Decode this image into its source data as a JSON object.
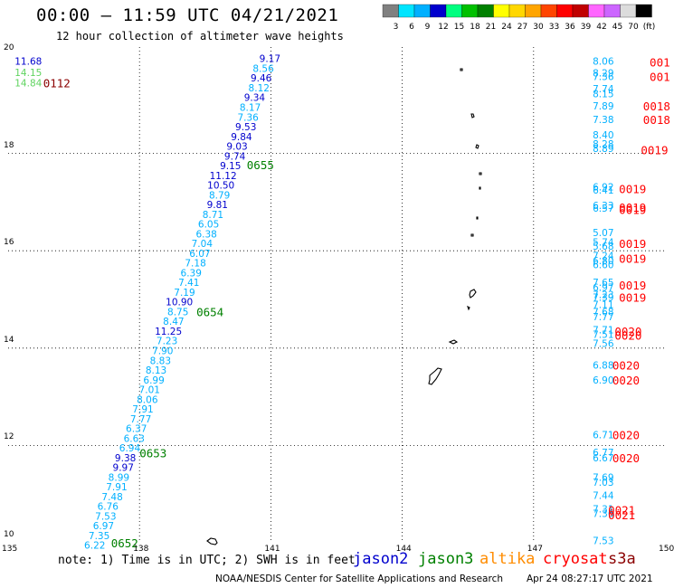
{
  "header": {
    "title": "00:00 — 11:59 UTC 04/21/2021",
    "subtitle": "12 hour collection of altimeter wave heights"
  },
  "colorbar": {
    "labels": [
      "3",
      "6",
      "9",
      "12",
      "15",
      "18",
      "21",
      "24",
      "27",
      "30",
      "33",
      "36",
      "39",
      "42",
      "45",
      "70",
      "(ft)"
    ],
    "colors": [
      "#808080",
      "#00e5ff",
      "#00b0ff",
      "#0000cd",
      "#00ff80",
      "#00c000",
      "#008000",
      "#ffff00",
      "#ffd700",
      "#ffa500",
      "#ff4500",
      "#ff0000",
      "#c00000",
      "#ff66ff",
      "#cc66ff",
      "#dcdcdc",
      "#000000"
    ]
  },
  "axes": {
    "x_ticks": [
      "135",
      "138",
      "141",
      "144",
      "147",
      "150"
    ],
    "y_ticks": [
      "10",
      "12",
      "14",
      "16",
      "18",
      "20"
    ],
    "lon_range": [
      135,
      150
    ],
    "lat_range": [
      10,
      20
    ]
  },
  "tracks": [
    {
      "group": "left",
      "points": [
        {
          "lat": 19.9,
          "lon": 135.15,
          "value": "11.68",
          "color": "#0000cd"
        },
        {
          "lat": 19.67,
          "lon": 135.15,
          "value": "14.15",
          "color": "#5fd35f"
        },
        {
          "lat": 19.45,
          "lon": 135.15,
          "value": "14.84",
          "color": "#5fd35f"
        },
        {
          "lat": 19.95,
          "lon": 141.22,
          "value": "9.17",
          "color": "#0000cd"
        },
        {
          "lat": 19.75,
          "lon": 141.07,
          "value": "8.56",
          "color": "#00b0ff"
        },
        {
          "lat": 19.55,
          "lon": 141.02,
          "value": "9.46",
          "color": "#0000cd"
        },
        {
          "lat": 19.35,
          "lon": 140.97,
          "value": "8.12",
          "color": "#00b0ff"
        },
        {
          "lat": 19.15,
          "lon": 140.87,
          "value": "9.34",
          "color": "#0000cd"
        },
        {
          "lat": 18.95,
          "lon": 140.77,
          "value": "8.17",
          "color": "#00b0ff"
        },
        {
          "lat": 18.75,
          "lon": 140.72,
          "value": "7.36",
          "color": "#00b0ff"
        },
        {
          "lat": 18.55,
          "lon": 140.67,
          "value": "9.53",
          "color": "#0000cd"
        },
        {
          "lat": 18.35,
          "lon": 140.57,
          "value": "9.84",
          "color": "#0000cd"
        },
        {
          "lat": 18.15,
          "lon": 140.47,
          "value": "9.03",
          "color": "#0000cd"
        },
        {
          "lat": 17.95,
          "lon": 140.42,
          "value": "9.74",
          "color": "#0000cd"
        },
        {
          "lat": 17.75,
          "lon": 140.32,
          "value": "9.15",
          "color": "#0000cd"
        },
        {
          "lat": 17.55,
          "lon": 140.22,
          "value": "11.12",
          "color": "#0000cd"
        },
        {
          "lat": 17.35,
          "lon": 140.17,
          "value": "10.50",
          "color": "#0000cd"
        },
        {
          "lat": 17.15,
          "lon": 140.07,
          "value": "8.79",
          "color": "#00b0ff"
        },
        {
          "lat": 16.95,
          "lon": 140.02,
          "value": "9.81",
          "color": "#0000cd"
        },
        {
          "lat": 16.75,
          "lon": 139.92,
          "value": "8.71",
          "color": "#00b0ff"
        },
        {
          "lat": 16.55,
          "lon": 139.82,
          "value": "6.05",
          "color": "#00b0ff"
        },
        {
          "lat": 16.35,
          "lon": 139.77,
          "value": "6.38",
          "color": "#00b0ff"
        },
        {
          "lat": 16.15,
          "lon": 139.67,
          "value": "7.04",
          "color": "#00b0ff"
        },
        {
          "lat": 15.95,
          "lon": 139.62,
          "value": "6.07",
          "color": "#00b0ff"
        },
        {
          "lat": 15.75,
          "lon": 139.52,
          "value": "7.18",
          "color": "#00b0ff"
        },
        {
          "lat": 15.55,
          "lon": 139.42,
          "value": "6.39",
          "color": "#00b0ff"
        },
        {
          "lat": 15.35,
          "lon": 139.37,
          "value": "7.41",
          "color": "#00b0ff"
        },
        {
          "lat": 15.15,
          "lon": 139.27,
          "value": "7.19",
          "color": "#00b0ff"
        },
        {
          "lat": 14.95,
          "lon": 139.22,
          "value": "10.90",
          "color": "#0000cd"
        },
        {
          "lat": 14.75,
          "lon": 139.12,
          "value": "8.75",
          "color": "#00b0ff"
        },
        {
          "lat": 14.55,
          "lon": 139.02,
          "value": "8.47",
          "color": "#00b0ff"
        },
        {
          "lat": 14.35,
          "lon": 138.97,
          "value": "11.25",
          "color": "#0000cd"
        },
        {
          "lat": 14.15,
          "lon": 138.87,
          "value": "7.23",
          "color": "#00b0ff"
        },
        {
          "lat": 13.95,
          "lon": 138.77,
          "value": "7.90",
          "color": "#00b0ff"
        },
        {
          "lat": 13.75,
          "lon": 138.72,
          "value": "8.83",
          "color": "#00b0ff"
        },
        {
          "lat": 13.55,
          "lon": 138.62,
          "value": "8.13",
          "color": "#00b0ff"
        },
        {
          "lat": 13.35,
          "lon": 138.57,
          "value": "6.99",
          "color": "#00b0ff"
        },
        {
          "lat": 13.15,
          "lon": 138.47,
          "value": "7.01",
          "color": "#00b0ff"
        },
        {
          "lat": 12.95,
          "lon": 138.42,
          "value": "8.06",
          "color": "#00b0ff"
        },
        {
          "lat": 12.75,
          "lon": 138.32,
          "value": "7.91",
          "color": "#00b0ff"
        },
        {
          "lat": 12.55,
          "lon": 138.27,
          "value": "7.77",
          "color": "#00b0ff"
        },
        {
          "lat": 12.35,
          "lon": 138.17,
          "value": "6.37",
          "color": "#00b0ff"
        },
        {
          "lat": 12.15,
          "lon": 138.12,
          "value": "6.63",
          "color": "#00b0ff"
        },
        {
          "lat": 11.95,
          "lon": 138.02,
          "value": "6.94",
          "color": "#00b0ff"
        },
        {
          "lat": 11.75,
          "lon": 137.92,
          "value": "9.38",
          "color": "#0000cd"
        },
        {
          "lat": 11.55,
          "lon": 137.87,
          "value": "9.97",
          "color": "#0000cd"
        },
        {
          "lat": 11.35,
          "lon": 137.77,
          "value": "8.99",
          "color": "#00b0ff"
        },
        {
          "lat": 11.15,
          "lon": 137.72,
          "value": "7.91",
          "color": "#00b0ff"
        },
        {
          "lat": 10.95,
          "lon": 137.62,
          "value": "7.48",
          "color": "#00b0ff"
        },
        {
          "lat": 10.75,
          "lon": 137.52,
          "value": "6.76",
          "color": "#00b0ff"
        },
        {
          "lat": 10.55,
          "lon": 137.47,
          "value": "7.53",
          "color": "#00b0ff"
        },
        {
          "lat": 10.35,
          "lon": 137.42,
          "value": "6.97",
          "color": "#00b0ff"
        },
        {
          "lat": 10.15,
          "lon": 137.32,
          "value": "7.35",
          "color": "#00b0ff"
        },
        {
          "lat": 9.95,
          "lon": 137.22,
          "value": "6.22",
          "color": "#00b0ff"
        }
      ]
    },
    {
      "group": "right",
      "points": [
        {
          "lat": 19.9,
          "lon": 148.35,
          "value": "8.06",
          "color": "#00b0ff"
        },
        {
          "lat": 19.66,
          "lon": 148.35,
          "value": "8.29",
          "color": "#00b0ff"
        },
        {
          "lat": 19.58,
          "lon": 148.35,
          "value": "7.36",
          "color": "#00b0ff"
        },
        {
          "lat": 19.33,
          "lon": 148.35,
          "value": "7.74",
          "color": "#00b0ff"
        },
        {
          "lat": 19.23,
          "lon": 148.35,
          "value": "8.15",
          "color": "#00b0ff"
        },
        {
          "lat": 18.98,
          "lon": 148.35,
          "value": "7.89",
          "color": "#00b0ff"
        },
        {
          "lat": 18.7,
          "lon": 148.35,
          "value": "7.38",
          "color": "#00b0ff"
        },
        {
          "lat": 18.38,
          "lon": 148.35,
          "value": "8.40",
          "color": "#00b0ff"
        },
        {
          "lat": 18.2,
          "lon": 148.35,
          "value": "8.28",
          "color": "#00b0ff"
        },
        {
          "lat": 18.1,
          "lon": 148.35,
          "value": "8.89",
          "color": "#00b0ff"
        },
        {
          "lat": 17.31,
          "lon": 148.35,
          "value": "6.92",
          "color": "#00b0ff"
        },
        {
          "lat": 17.25,
          "lon": 148.35,
          "value": "6.41",
          "color": "#00b0ff"
        },
        {
          "lat": 16.93,
          "lon": 148.35,
          "value": "6.33",
          "color": "#00b0ff"
        },
        {
          "lat": 16.88,
          "lon": 148.35,
          "value": "6.57",
          "color": "#00b0ff"
        },
        {
          "lat": 16.38,
          "lon": 148.35,
          "value": "5.07",
          "color": "#00b0ff"
        },
        {
          "lat": 16.18,
          "lon": 148.35,
          "value": "5.74",
          "color": "#00b0ff"
        },
        {
          "lat": 16.1,
          "lon": 148.35,
          "value": "5.68",
          "color": "#00b0ff"
        },
        {
          "lat": 15.9,
          "lon": 148.35,
          "value": "7.24",
          "color": "#00b0ff"
        },
        {
          "lat": 15.8,
          "lon": 148.35,
          "value": "6.80",
          "color": "#00b0ff"
        },
        {
          "lat": 15.72,
          "lon": 148.35,
          "value": "6.60",
          "color": "#00b0ff"
        },
        {
          "lat": 15.35,
          "lon": 148.35,
          "value": "7.65",
          "color": "#00b0ff"
        },
        {
          "lat": 15.25,
          "lon": 148.35,
          "value": "6.97",
          "color": "#00b0ff"
        },
        {
          "lat": 15.1,
          "lon": 148.35,
          "value": "7.23",
          "color": "#00b0ff"
        },
        {
          "lat": 15.05,
          "lon": 148.35,
          "value": "7.39",
          "color": "#00b0ff"
        },
        {
          "lat": 14.9,
          "lon": 148.35,
          "value": "7.11",
          "color": "#00b0ff"
        },
        {
          "lat": 14.75,
          "lon": 148.35,
          "value": "7.68",
          "color": "#00b0ff"
        },
        {
          "lat": 14.65,
          "lon": 148.35,
          "value": "7.77",
          "color": "#00b0ff"
        },
        {
          "lat": 14.38,
          "lon": 148.35,
          "value": "7.71",
          "color": "#00b0ff"
        },
        {
          "lat": 14.28,
          "lon": 148.35,
          "value": "7.51",
          "color": "#00b0ff"
        },
        {
          "lat": 14.1,
          "lon": 148.35,
          "value": "7.56",
          "color": "#00b0ff"
        },
        {
          "lat": 13.65,
          "lon": 148.35,
          "value": "6.88",
          "color": "#00b0ff"
        },
        {
          "lat": 13.35,
          "lon": 148.35,
          "value": "6.90",
          "color": "#00b0ff"
        },
        {
          "lat": 12.22,
          "lon": 148.35,
          "value": "6.71",
          "color": "#00b0ff"
        },
        {
          "lat": 11.86,
          "lon": 148.35,
          "value": "6.77",
          "color": "#00b0ff"
        },
        {
          "lat": 11.75,
          "lon": 148.35,
          "value": "6.67",
          "color": "#00b0ff"
        },
        {
          "lat": 11.35,
          "lon": 148.35,
          "value": "7.69",
          "color": "#00b0ff"
        },
        {
          "lat": 11.25,
          "lon": 148.35,
          "value": "7.03",
          "color": "#00b0ff"
        },
        {
          "lat": 10.98,
          "lon": 148.35,
          "value": "7.44",
          "color": "#00b0ff"
        },
        {
          "lat": 10.7,
          "lon": 148.35,
          "value": "7.31",
          "color": "#00b0ff"
        },
        {
          "lat": 10.6,
          "lon": 148.35,
          "value": "7.36",
          "color": "#00b0ff"
        },
        {
          "lat": 10.05,
          "lon": 148.35,
          "value": "7.53",
          "color": "#00b0ff"
        }
      ]
    }
  ],
  "time_labels": [
    {
      "lat": 19.45,
      "lon": 135.8,
      "text": "0112",
      "color": "#8b0000"
    },
    {
      "lat": 17.77,
      "lon": 140.45,
      "text": "0655",
      "color": "#008000"
    },
    {
      "lat": 14.75,
      "lon": 139.3,
      "text": "0654",
      "color": "#008000"
    },
    {
      "lat": 11.85,
      "lon": 138.0,
      "text": "0653",
      "color": "#008000"
    },
    {
      "lat": 10.0,
      "lon": 137.35,
      "text": "0652",
      "color": "#008000"
    },
    {
      "lat": 19.88,
      "lon": 149.65,
      "text": "001",
      "color": "#ff0000"
    },
    {
      "lat": 19.58,
      "lon": 149.65,
      "text": "001",
      "color": "#ff0000"
    },
    {
      "lat": 18.98,
      "lon": 149.5,
      "text": "0018",
      "color": "#ff0000"
    },
    {
      "lat": 18.7,
      "lon": 149.5,
      "text": "0018",
      "color": "#ff0000"
    },
    {
      "lat": 18.08,
      "lon": 149.45,
      "text": "0019",
      "color": "#ff0000"
    },
    {
      "lat": 17.28,
      "lon": 148.95,
      "text": "0019",
      "color": "#ff0000"
    },
    {
      "lat": 16.9,
      "lon": 148.95,
      "text": "0019",
      "color": "#ff0000"
    },
    {
      "lat": 16.85,
      "lon": 148.95,
      "text": "0019",
      "color": "#ff0000"
    },
    {
      "lat": 16.15,
      "lon": 148.95,
      "text": "0019",
      "color": "#ff0000"
    },
    {
      "lat": 15.85,
      "lon": 148.95,
      "text": "0019",
      "color": "#ff0000"
    },
    {
      "lat": 15.3,
      "lon": 148.95,
      "text": "0019",
      "color": "#ff0000"
    },
    {
      "lat": 15.05,
      "lon": 148.95,
      "text": "0019",
      "color": "#ff0000"
    },
    {
      "lat": 14.35,
      "lon": 148.85,
      "text": "0020",
      "color": "#ff0000"
    },
    {
      "lat": 14.27,
      "lon": 148.85,
      "text": "0020",
      "color": "#ff0000"
    },
    {
      "lat": 13.65,
      "lon": 148.8,
      "text": "0020",
      "color": "#ff0000"
    },
    {
      "lat": 13.35,
      "lon": 148.8,
      "text": "0020",
      "color": "#ff0000"
    },
    {
      "lat": 12.22,
      "lon": 148.8,
      "text": "0020",
      "color": "#ff0000"
    },
    {
      "lat": 11.75,
      "lon": 148.8,
      "text": "0020",
      "color": "#ff0000"
    },
    {
      "lat": 10.68,
      "lon": 148.7,
      "text": "0021",
      "color": "#ff0000"
    },
    {
      "lat": 10.58,
      "lon": 148.7,
      "text": "0021",
      "color": "#ff0000"
    }
  ],
  "footer": {
    "note": "note: 1) Time is in UTC; 2) SWH is in feet",
    "legend": [
      {
        "name": "jason2",
        "color": "#0000cd"
      },
      {
        "name": "jason3",
        "color": "#008000"
      },
      {
        "name": "altika",
        "color": "#ff8c00"
      },
      {
        "name": "cryosat",
        "color": "#ff0000"
      },
      {
        "name": "s3a",
        "color": "#8b0000"
      }
    ],
    "credit": "NOAA/NESDIS Center for Satellite Applications and Research",
    "generated": "Apr 24 08:27:17 UTC 2021"
  }
}
